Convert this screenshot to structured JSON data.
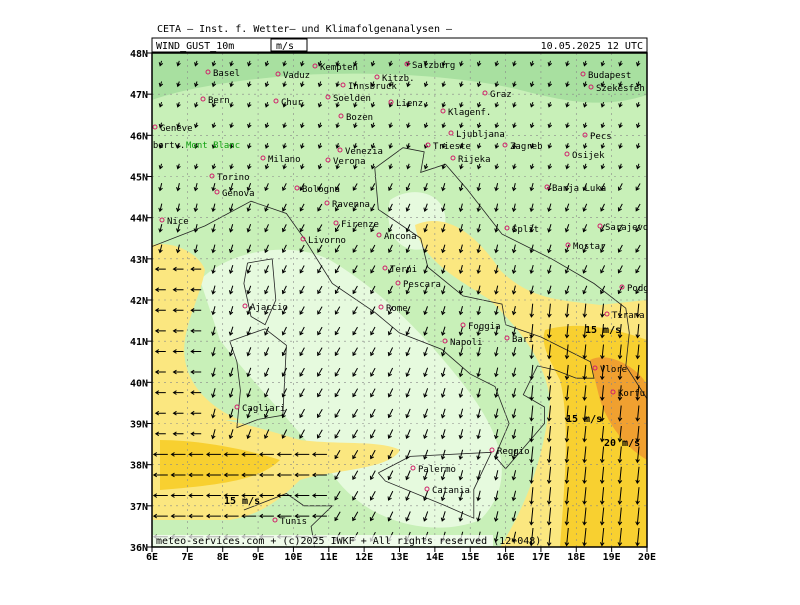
{
  "header": {
    "title": "CETA — Inst. f. Wetter— und Klimafolgenanalysen —",
    "field": "WIND_GUST_10m",
    "unit": "m/s",
    "valid": "10.05.2025 12 UTC"
  },
  "footer": "meteo-services.com + (c)2025 IWKF + All rights reserved (12+048)",
  "axes": {
    "lat_ticks": [
      {
        "value": 48,
        "label": "48N"
      },
      {
        "value": 47,
        "label": "47N"
      },
      {
        "value": 46,
        "label": "46N"
      },
      {
        "value": 45,
        "label": "45N"
      },
      {
        "value": 44,
        "label": "44N"
      },
      {
        "value": 43,
        "label": "43N"
      },
      {
        "value": 42,
        "label": "42N"
      },
      {
        "value": 41,
        "label": "41N"
      },
      {
        "value": 40,
        "label": "40N"
      },
      {
        "value": 39,
        "label": "39N"
      },
      {
        "value": 38,
        "label": "38N"
      },
      {
        "value": 37,
        "label": "37N"
      },
      {
        "value": 36,
        "label": "36N"
      }
    ],
    "lon_ticks": [
      {
        "value": 6,
        "label": "6E"
      },
      {
        "value": 7,
        "label": "7E"
      },
      {
        "value": 8,
        "label": "8E"
      },
      {
        "value": 9,
        "label": "9E"
      },
      {
        "value": 10,
        "label": "10E"
      },
      {
        "value": 11,
        "label": "11E"
      },
      {
        "value": 12,
        "label": "12E"
      },
      {
        "value": 13,
        "label": "13E"
      },
      {
        "value": 14,
        "label": "14E"
      },
      {
        "value": 15,
        "label": "15E"
      },
      {
        "value": 16,
        "label": "16E"
      },
      {
        "value": 17,
        "label": "17E"
      },
      {
        "value": 18,
        "label": "18E"
      },
      {
        "value": 19,
        "label": "19E"
      },
      {
        "value": 20,
        "label": "20E"
      }
    ]
  },
  "cities": [
    "Basel",
    "Vaduz",
    "Kempten",
    "Kitzb.",
    "Salzburg",
    "Innsbruck",
    "Soelden",
    "Lienz",
    "Bozen",
    "Bern",
    "Chur",
    "Geneve",
    "Albertv.",
    "Mont Blanc",
    "Torino",
    "Genova",
    "Nice",
    "Milano",
    "Verona",
    "Venezia",
    "Bologna",
    "Ravenna",
    "Firenze",
    "Livorno",
    "Ancona",
    "Graz",
    "Klagenf.",
    "Ljubljana",
    "Trieste",
    "Rijeka",
    "Zagreb",
    "Budapest",
    "Szekesfeh",
    "Pecs",
    "Osijek",
    "Banja Luka",
    "Split",
    "Sarajevo",
    "Mostar",
    "Podgorica",
    "Tirana",
    "Terni",
    "Pescara",
    "Rome",
    "Ajaccio",
    "Foggia",
    "Bari",
    "Napoli",
    "Vlore",
    "Korfu",
    "Cagliari",
    "Palermo",
    "Catania",
    "Reggio",
    "Tunis"
  ],
  "isotach_labels": [
    "15 m/s",
    "15 m/s",
    "20 m/s",
    "15 m/s"
  ]
}
